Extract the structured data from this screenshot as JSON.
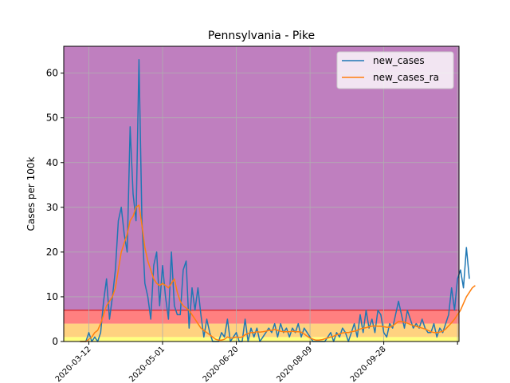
{
  "chart_data": {
    "type": "line",
    "title": "Pennsylvania - Pike",
    "xlabel": "",
    "ylabel": "Cases per 100k",
    "x_start": "2020-03-06",
    "x_step_days": 2,
    "xlim": [
      "2020-02-24",
      "2020-11-18"
    ],
    "ylim": [
      0,
      66
    ],
    "x_ticks": [
      "2020-03-12",
      "2020-05-01",
      "2020-06-20",
      "2020-08-09",
      "2020-09-28",
      "2020-11-17"
    ],
    "x_tick_labels": [
      "2020-03-12",
      "2020-05-01",
      "2020-06-20",
      "2020-08-09",
      "2020-09-28",
      ""
    ],
    "y_ticks": [
      0,
      10,
      20,
      30,
      40,
      50,
      60
    ],
    "y_tick_labels": [
      "0",
      "10",
      "20",
      "30",
      "40",
      "50",
      "60"
    ],
    "grid": true,
    "legend_position": "top-right",
    "bands": [
      {
        "from": 0,
        "to": 1,
        "color": "#ffff80"
      },
      {
        "from": 1,
        "to": 4,
        "color": "#ffd280"
      },
      {
        "from": 4,
        "to": 7,
        "color": "#ff8080"
      },
      {
        "from": 7,
        "to": 66,
        "color": "#bf7fbf"
      }
    ],
    "threshold_line": {
      "value": 7,
      "color": "#d62728"
    },
    "series": [
      {
        "name": "new_cases",
        "color": "#1f77b4",
        "values": [
          0,
          0,
          0,
          2,
          0,
          1,
          0,
          2,
          9,
          14,
          5,
          10,
          16,
          27,
          30,
          24,
          20,
          48,
          33,
          27,
          63,
          27,
          13,
          10,
          5,
          17,
          20,
          8,
          17,
          10,
          5,
          20,
          8,
          6,
          6,
          16,
          18,
          3,
          12,
          7,
          12,
          6,
          1,
          5,
          2,
          0,
          0,
          0,
          2,
          1,
          5,
          0,
          1,
          2,
          0,
          0,
          5,
          0,
          3,
          1,
          3,
          0,
          1,
          2,
          3,
          2,
          4,
          1,
          4,
          2,
          3,
          1,
          3,
          2,
          4,
          1,
          3,
          2,
          1,
          0,
          0,
          0,
          0,
          0,
          1,
          2,
          0,
          2,
          1,
          3,
          2,
          0,
          2,
          4,
          1,
          6,
          2,
          7,
          3,
          5,
          2,
          7,
          6,
          2,
          1,
          4,
          3,
          6,
          9,
          6,
          3,
          7,
          5,
          3,
          4,
          3,
          5,
          3,
          2,
          2,
          4,
          1,
          3,
          2,
          4,
          6,
          12,
          7,
          14,
          16,
          12,
          21,
          14
        ]
      },
      {
        "name": "new_cases_ra",
        "color": "#ff7f0e",
        "values": [
          0,
          0,
          0,
          0.5,
          1,
          2,
          2.5,
          4,
          6,
          8,
          9,
          10,
          12,
          16,
          20,
          22,
          24,
          27,
          28,
          30,
          30.5,
          26,
          21,
          18,
          16,
          14,
          13,
          12.5,
          13,
          12.5,
          12,
          13,
          14,
          11,
          9,
          8,
          7.5,
          7,
          6,
          5,
          4,
          3,
          2.5,
          2,
          1.5,
          1,
          0.5,
          0.3,
          0.3,
          0.5,
          1,
          0.8,
          0.8,
          1,
          0.9,
          1,
          1.5,
          1.8,
          2,
          2,
          2.2,
          2.1,
          2.2,
          2.3,
          2.5,
          2.5,
          2.7,
          2.5,
          2.3,
          2.2,
          2.2,
          2.2,
          2.3,
          2.2,
          2.2,
          2.1,
          1.7,
          1.2,
          0.8,
          0.5,
          0.3,
          0.3,
          0.4,
          0.6,
          0.8,
          1,
          1.2,
          1.5,
          1.7,
          1.9,
          2,
          2,
          2.2,
          2.3,
          2.5,
          2.8,
          3,
          3.1,
          3.3,
          3.4,
          3.5,
          3.4,
          3.4,
          3.3,
          3.2,
          3.2,
          3.5,
          4,
          4.5,
          4.5,
          4.3,
          4.1,
          3.8,
          3.6,
          3.4,
          3.2,
          3,
          2.8,
          2.5,
          2.2,
          2,
          2,
          2.1,
          2.3,
          2.8,
          3.5,
          4.2,
          5,
          6,
          7,
          8.5,
          10,
          11,
          12,
          12.5
        ]
      }
    ]
  }
}
